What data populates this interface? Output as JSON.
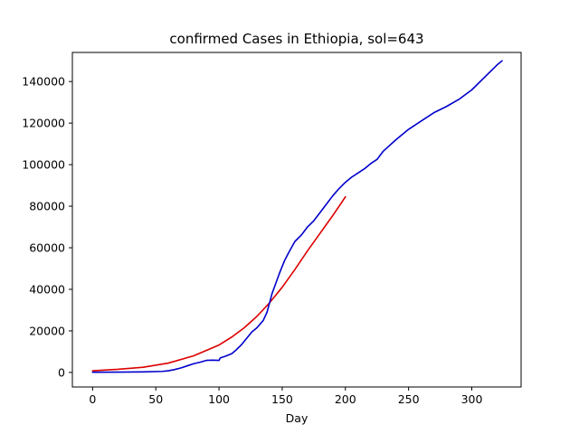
{
  "chart_data": {
    "type": "line",
    "title": "confirmed Cases in Ethiopia, sol=643",
    "xlabel": "Day",
    "ylabel": "",
    "xlim": [
      -16,
      339
    ],
    "ylim": [
      -7000,
      154000
    ],
    "xticks": [
      0,
      50,
      100,
      150,
      200,
      250,
      300
    ],
    "yticks": [
      0,
      20000,
      40000,
      60000,
      80000,
      100000,
      120000,
      140000
    ],
    "grid": false,
    "series": [
      {
        "color": "#dd0000",
        "x": [
          0,
          20,
          40,
          60,
          80,
          100,
          110,
          120,
          130,
          140,
          150,
          160,
          170,
          180,
          190,
          200
        ],
        "y": [
          800,
          1500,
          2500,
          4500,
          8000,
          13200,
          17000,
          21500,
          27000,
          33500,
          41000,
          49500,
          58500,
          67000,
          75500,
          84500
        ]
      },
      {
        "color": "#0000cc",
        "x": [
          0,
          20,
          40,
          55,
          60,
          65,
          70,
          75,
          80,
          85,
          90,
          95,
          100,
          101,
          105,
          110,
          113,
          118,
          122,
          126,
          130,
          135,
          138,
          140,
          142,
          145,
          148,
          150,
          152,
          155,
          160,
          165,
          170,
          175,
          180,
          185,
          190,
          195,
          200,
          205,
          210,
          215,
          220,
          225,
          230,
          240,
          250,
          260,
          270,
          280,
          290,
          300,
          310,
          315,
          320,
          324
        ],
        "y": [
          100,
          150,
          250,
          500,
          800,
          1400,
          2200,
          3200,
          4200,
          4900,
          5800,
          5900,
          5800,
          7000,
          7800,
          9000,
          10500,
          13500,
          16500,
          19500,
          21500,
          25000,
          29000,
          33500,
          38000,
          43000,
          48000,
          51000,
          54000,
          57500,
          63000,
          66000,
          70000,
          73000,
          77000,
          81000,
          85000,
          88500,
          91500,
          94000,
          96000,
          98000,
          100500,
          102500,
          106500,
          112000,
          117000,
          121000,
          125000,
          128000,
          131500,
          136000,
          142000,
          145000,
          148000,
          150000
        ]
      }
    ]
  }
}
